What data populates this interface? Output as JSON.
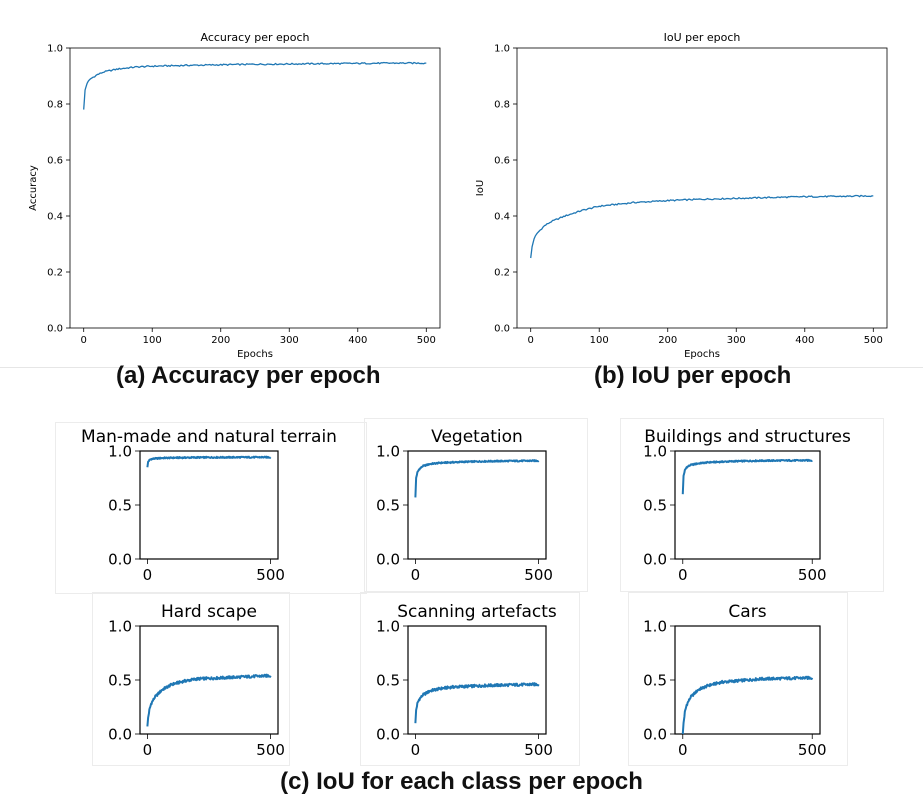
{
  "captions": {
    "a": "(a) Accuracy per epoch",
    "b": "(b) IoU per epoch",
    "c": "(c) IoU for each class per epoch"
  },
  "colors": {
    "line": "#1f77b4",
    "axis": "#000000"
  },
  "chart_data": [
    {
      "type": "line",
      "title": "Accuracy per epoch",
      "xlabel": "Epochs",
      "ylabel": "Accuracy",
      "xlim": [
        -20,
        520
      ],
      "ylim": [
        0,
        1.0
      ],
      "xticks": [
        0,
        100,
        200,
        300,
        400,
        500
      ],
      "yticks": [
        0.0,
        0.2,
        0.4,
        0.6,
        0.8,
        1.0
      ],
      "x": [
        0,
        2,
        5,
        10,
        20,
        30,
        50,
        75,
        100,
        150,
        200,
        250,
        300,
        350,
        400,
        450,
        500
      ],
      "values": [
        0.78,
        0.85,
        0.875,
        0.89,
        0.905,
        0.915,
        0.925,
        0.932,
        0.935,
        0.938,
        0.94,
        0.942,
        0.943,
        0.944,
        0.945,
        0.946,
        0.946
      ]
    },
    {
      "type": "line",
      "title": "IoU per epoch",
      "xlabel": "Epochs",
      "ylabel": "IoU",
      "xlim": [
        -20,
        520
      ],
      "ylim": [
        0,
        1.0
      ],
      "xticks": [
        0,
        100,
        200,
        300,
        400,
        500
      ],
      "yticks": [
        0.0,
        0.2,
        0.4,
        0.6,
        0.8,
        1.0
      ],
      "x": [
        0,
        2,
        5,
        10,
        20,
        30,
        50,
        75,
        100,
        150,
        200,
        250,
        300,
        350,
        400,
        450,
        500
      ],
      "values": [
        0.25,
        0.29,
        0.32,
        0.34,
        0.365,
        0.38,
        0.4,
        0.42,
        0.435,
        0.448,
        0.455,
        0.46,
        0.463,
        0.466,
        0.469,
        0.47,
        0.472
      ]
    },
    {
      "type": "line",
      "title": "Man-made and natural terrain",
      "xlim": [
        -30,
        530
      ],
      "ylim": [
        0,
        1.0
      ],
      "xticks": [
        0,
        500
      ],
      "yticks": [
        0.0,
        0.5,
        1.0
      ],
      "x": [
        0,
        3,
        8,
        15,
        30,
        60,
        100,
        200,
        300,
        400,
        500
      ],
      "values": [
        0.85,
        0.9,
        0.915,
        0.925,
        0.93,
        0.935,
        0.937,
        0.94,
        0.941,
        0.942,
        0.942
      ]
    },
    {
      "type": "line",
      "title": "Vegetation",
      "xlim": [
        -30,
        530
      ],
      "ylim": [
        0,
        1.0
      ],
      "xticks": [
        0,
        500
      ],
      "yticks": [
        0.0,
        0.5,
        1.0
      ],
      "x": [
        0,
        3,
        8,
        15,
        30,
        60,
        100,
        200,
        300,
        400,
        500
      ],
      "values": [
        0.57,
        0.75,
        0.8,
        0.83,
        0.86,
        0.88,
        0.89,
        0.9,
        0.905,
        0.908,
        0.91
      ]
    },
    {
      "type": "line",
      "title": "Buildings and structures",
      "xlim": [
        -30,
        530
      ],
      "ylim": [
        0,
        1.0
      ],
      "xticks": [
        0,
        500
      ],
      "yticks": [
        0.0,
        0.5,
        1.0
      ],
      "x": [
        0,
        3,
        8,
        15,
        30,
        60,
        100,
        200,
        300,
        400,
        500
      ],
      "values": [
        0.6,
        0.77,
        0.82,
        0.85,
        0.87,
        0.885,
        0.895,
        0.905,
        0.91,
        0.912,
        0.913
      ]
    },
    {
      "type": "line",
      "title": "Hard scape",
      "xlim": [
        -30,
        530
      ],
      "ylim": [
        0,
        1.0
      ],
      "xticks": [
        0,
        500
      ],
      "yticks": [
        0.0,
        0.5,
        1.0
      ],
      "x": [
        0,
        3,
        8,
        15,
        30,
        60,
        100,
        150,
        200,
        300,
        400,
        500
      ],
      "values": [
        0.07,
        0.15,
        0.22,
        0.28,
        0.34,
        0.41,
        0.46,
        0.49,
        0.51,
        0.52,
        0.53,
        0.54
      ]
    },
    {
      "type": "line",
      "title": "Scanning artefacts",
      "xlim": [
        -30,
        530
      ],
      "ylim": [
        0,
        1.0
      ],
      "xticks": [
        0,
        500
      ],
      "yticks": [
        0.0,
        0.5,
        1.0
      ],
      "x": [
        0,
        3,
        8,
        15,
        30,
        60,
        100,
        150,
        200,
        300,
        400,
        500
      ],
      "values": [
        0.1,
        0.22,
        0.28,
        0.32,
        0.36,
        0.4,
        0.42,
        0.435,
        0.44,
        0.45,
        0.455,
        0.46
      ]
    },
    {
      "type": "line",
      "title": "Cars",
      "xlim": [
        -30,
        530
      ],
      "ylim": [
        0,
        1.0
      ],
      "xticks": [
        0,
        500
      ],
      "yticks": [
        0.0,
        0.5,
        1.0
      ],
      "x": [
        0,
        3,
        8,
        15,
        30,
        60,
        100,
        150,
        200,
        300,
        400,
        500
      ],
      "values": [
        0.0,
        0.1,
        0.2,
        0.27,
        0.34,
        0.41,
        0.45,
        0.48,
        0.49,
        0.51,
        0.515,
        0.52
      ]
    }
  ]
}
